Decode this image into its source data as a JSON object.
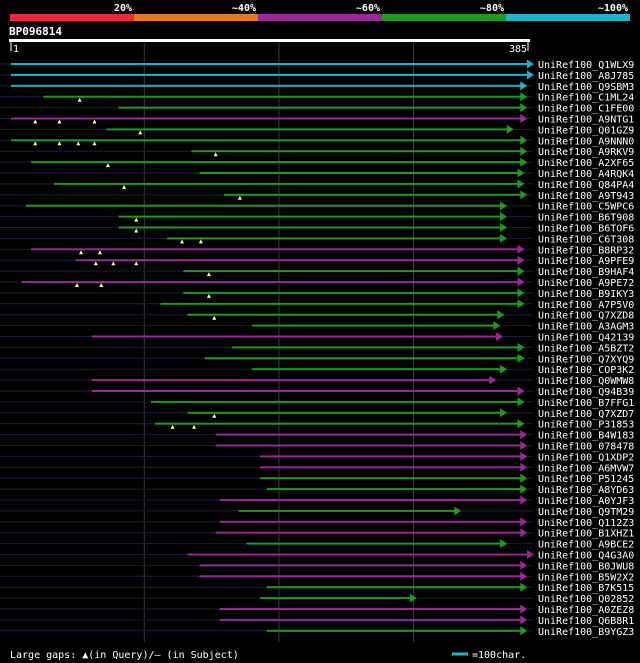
{
  "chart_data": {
    "type": "alignment-overview",
    "query_id": "BP096814",
    "query_start": "1",
    "query_end": "385",
    "query_length": 385,
    "identity_scale": [
      {
        "label": "20%",
        "color": "#e8283c"
      },
      {
        "label": "~40%",
        "color": "#e8781e"
      },
      {
        "label": "~60%",
        "color": "#9a2896"
      },
      {
        "label": "~80%",
        "color": "#1e9a1e"
      },
      {
        "label": "~100%",
        "color": "#1eb4c8"
      }
    ],
    "hits": [
      {
        "id": "UniRef100_Q1WLX9",
        "start": 1,
        "end": 385,
        "identity": "~100%",
        "gaps": []
      },
      {
        "id": "UniRef100_A8J785",
        "start": 1,
        "end": 385,
        "identity": "~100%",
        "gaps": []
      },
      {
        "id": "UniRef100_Q9SBM3",
        "start": 1,
        "end": 380,
        "identity": "~100%",
        "gaps": []
      },
      {
        "id": "UniRef100_C1ML24",
        "start": 25,
        "end": 380,
        "identity": "~80%",
        "gaps": [
          {
            "pos": 52,
            "type": "query"
          }
        ]
      },
      {
        "id": "UniRef100_C1FE00",
        "start": 81,
        "end": 380,
        "identity": "~80%",
        "gaps": []
      },
      {
        "id": "UniRef100_A9NTG1",
        "start": 1,
        "end": 380,
        "identity": "~60%",
        "gaps": [
          {
            "pos": 19,
            "type": "query"
          },
          {
            "pos": 37,
            "type": "query"
          },
          {
            "pos": 63,
            "type": "query"
          }
        ]
      },
      {
        "id": "UniRef100_Q01GZ9",
        "start": 72,
        "end": 370,
        "identity": "~80%",
        "gaps": [
          {
            "pos": 97,
            "type": "query"
          }
        ]
      },
      {
        "id": "UniRef100_A9NNN0",
        "start": 1,
        "end": 380,
        "identity": "~80%",
        "gaps": [
          {
            "pos": 19,
            "type": "query"
          },
          {
            "pos": 37,
            "type": "query"
          },
          {
            "pos": 51,
            "type": "query"
          },
          {
            "pos": 63,
            "type": "query"
          }
        ]
      },
      {
        "id": "UniRef100_A9RKV9",
        "start": 135,
        "end": 380,
        "identity": "~80%",
        "gaps": [
          {
            "pos": 153,
            "type": "query"
          }
        ]
      },
      {
        "id": "UniRef100_A2XF65",
        "start": 16,
        "end": 380,
        "identity": "~80%",
        "gaps": [
          {
            "pos": 73,
            "type": "query"
          }
        ]
      },
      {
        "id": "UniRef100_A4RQK4",
        "start": 141,
        "end": 378,
        "identity": "~80%",
        "gaps": []
      },
      {
        "id": "UniRef100_Q84PA4",
        "start": 33,
        "end": 378,
        "identity": "~80%",
        "gaps": [
          {
            "pos": 85,
            "type": "query"
          }
        ]
      },
      {
        "id": "UniRef100_A9T943",
        "start": 159,
        "end": 380,
        "identity": "~80%",
        "gaps": [
          {
            "pos": 171,
            "type": "query"
          }
        ]
      },
      {
        "id": "UniRef100_C5WPC6",
        "start": 12,
        "end": 365,
        "identity": "~80%",
        "gaps": []
      },
      {
        "id": "UniRef100_B6T908",
        "start": 81,
        "end": 365,
        "identity": "~80%",
        "gaps": [
          {
            "pos": 94,
            "type": "query"
          }
        ]
      },
      {
        "id": "UniRef100_B6TOF6",
        "start": 81,
        "end": 365,
        "identity": "~80%",
        "gaps": [
          {
            "pos": 94,
            "type": "query"
          }
        ]
      },
      {
        "id": "UniRef100_C6T308",
        "start": 117,
        "end": 365,
        "identity": "~80%",
        "gaps": [
          {
            "pos": 128,
            "type": "query"
          },
          {
            "pos": 142,
            "type": "query"
          }
        ]
      },
      {
        "id": "UniRef100_B8RP32",
        "start": 16,
        "end": 378,
        "identity": "~60%",
        "gaps": [
          {
            "pos": 53,
            "type": "query"
          },
          {
            "pos": 67,
            "type": "query"
          }
        ]
      },
      {
        "id": "UniRef100_A9PFE9",
        "start": 49,
        "end": 378,
        "identity": "~60%",
        "gaps": [
          {
            "pos": 64,
            "type": "query"
          },
          {
            "pos": 77,
            "type": "query"
          },
          {
            "pos": 94,
            "type": "query"
          }
        ]
      },
      {
        "id": "UniRef100_B9HAF4",
        "start": 129,
        "end": 378,
        "identity": "~80%",
        "gaps": [
          {
            "pos": 148,
            "type": "query"
          }
        ]
      },
      {
        "id": "UniRef100_A9PE72",
        "start": 9,
        "end": 378,
        "identity": "~60%",
        "gaps": [
          {
            "pos": 50,
            "type": "query"
          },
          {
            "pos": 68,
            "type": "query"
          }
        ]
      },
      {
        "id": "UniRef100_B9IKY3",
        "start": 129,
        "end": 378,
        "identity": "~80%",
        "gaps": [
          {
            "pos": 148,
            "type": "query"
          }
        ]
      },
      {
        "id": "UniRef100_A7P5V0",
        "start": 112,
        "end": 378,
        "identity": "~80%",
        "gaps": []
      },
      {
        "id": "UniRef100_Q7XZD8",
        "start": 132,
        "end": 363,
        "identity": "~80%",
        "gaps": [
          {
            "pos": 152,
            "type": "query"
          }
        ]
      },
      {
        "id": "UniRef100_A3AGM3",
        "start": 180,
        "end": 360,
        "identity": "~80%",
        "gaps": []
      },
      {
        "id": "UniRef100_Q42139",
        "start": 61,
        "end": 362,
        "identity": "~60%",
        "gaps": []
      },
      {
        "id": "UniRef100_A5BZT2",
        "start": 165,
        "end": 378,
        "identity": "~80%",
        "gaps": []
      },
      {
        "id": "UniRef100_Q7XYQ9",
        "start": 145,
        "end": 378,
        "identity": "~80%",
        "gaps": []
      },
      {
        "id": "UniRef100_COP3K2",
        "start": 180,
        "end": 365,
        "identity": "~80%",
        "gaps": []
      },
      {
        "id": "UniRef100_Q0WMW8",
        "start": 61,
        "end": 357,
        "identity": "~60%",
        "gaps": []
      },
      {
        "id": "UniRef100_Q94B39",
        "start": 61,
        "end": 378,
        "identity": "~60%",
        "gaps": []
      },
      {
        "id": "UniRef100_B7FFG1",
        "start": 105,
        "end": 378,
        "identity": "~80%",
        "gaps": []
      },
      {
        "id": "UniRef100_Q7XZD7",
        "start": 132,
        "end": 365,
        "identity": "~80%",
        "gaps": [
          {
            "pos": 152,
            "type": "query"
          }
        ]
      },
      {
        "id": "UniRef100_P31853",
        "start": 108,
        "end": 378,
        "identity": "~80%",
        "gaps": [
          {
            "pos": 121,
            "type": "query"
          },
          {
            "pos": 137,
            "type": "query"
          }
        ]
      },
      {
        "id": "UniRef100_B4W183",
        "start": 153,
        "end": 380,
        "identity": "~60%",
        "gaps": []
      },
      {
        "id": "UniRef100_078478",
        "start": 153,
        "end": 380,
        "identity": "~60%",
        "gaps": []
      },
      {
        "id": "UniRef100_Q1XDP2",
        "start": 186,
        "end": 380,
        "identity": "~60%",
        "gaps": []
      },
      {
        "id": "UniRef100_A6MVW7",
        "start": 186,
        "end": 380,
        "identity": "~60%",
        "gaps": []
      },
      {
        "id": "UniRef100_P51245",
        "start": 186,
        "end": 380,
        "identity": "~80%",
        "gaps": []
      },
      {
        "id": "UniRef100_A8YD63",
        "start": 191,
        "end": 380,
        "identity": "~80%",
        "gaps": []
      },
      {
        "id": "UniRef100_A0YJF3",
        "start": 156,
        "end": 380,
        "identity": "~60%",
        "gaps": []
      },
      {
        "id": "UniRef100_Q9TM29",
        "start": 170,
        "end": 331,
        "identity": "~80%",
        "gaps": []
      },
      {
        "id": "UniRef100_Q112Z3",
        "start": 156,
        "end": 380,
        "identity": "~60%",
        "gaps": []
      },
      {
        "id": "UniRef100_B1XHZ1",
        "start": 153,
        "end": 380,
        "identity": "~60%",
        "gaps": []
      },
      {
        "id": "UniRef100_A9BCE2",
        "start": 176,
        "end": 365,
        "identity": "~80%",
        "gaps": []
      },
      {
        "id": "UniRef100_Q4G3A0",
        "start": 132,
        "end": 385,
        "identity": "~60%",
        "gaps": []
      },
      {
        "id": "UniRef100_B0JWU8",
        "start": 141,
        "end": 380,
        "identity": "~60%",
        "gaps": []
      },
      {
        "id": "UniRef100_B5W2X2",
        "start": 141,
        "end": 380,
        "identity": "~60%",
        "gaps": []
      },
      {
        "id": "UniRef100_B7K515",
        "start": 191,
        "end": 380,
        "identity": "~80%",
        "gaps": []
      },
      {
        "id": "UniRef100_Q02852",
        "start": 186,
        "end": 298,
        "identity": "~80%",
        "gaps": []
      },
      {
        "id": "UniRef100_A0ZEZ8",
        "start": 156,
        "end": 380,
        "identity": "~60%",
        "gaps": []
      },
      {
        "id": "UniRef100_Q6B8R1",
        "start": 156,
        "end": 380,
        "identity": "~60%",
        "gaps": []
      },
      {
        "id": "UniRef100_B9YGZ3",
        "start": 191,
        "end": 380,
        "identity": "~80%",
        "gaps": []
      }
    ],
    "footer": {
      "gap_legend": "Large gaps: ▲(in Query)/— (in Subject)",
      "scale_label": "=100char."
    }
  }
}
